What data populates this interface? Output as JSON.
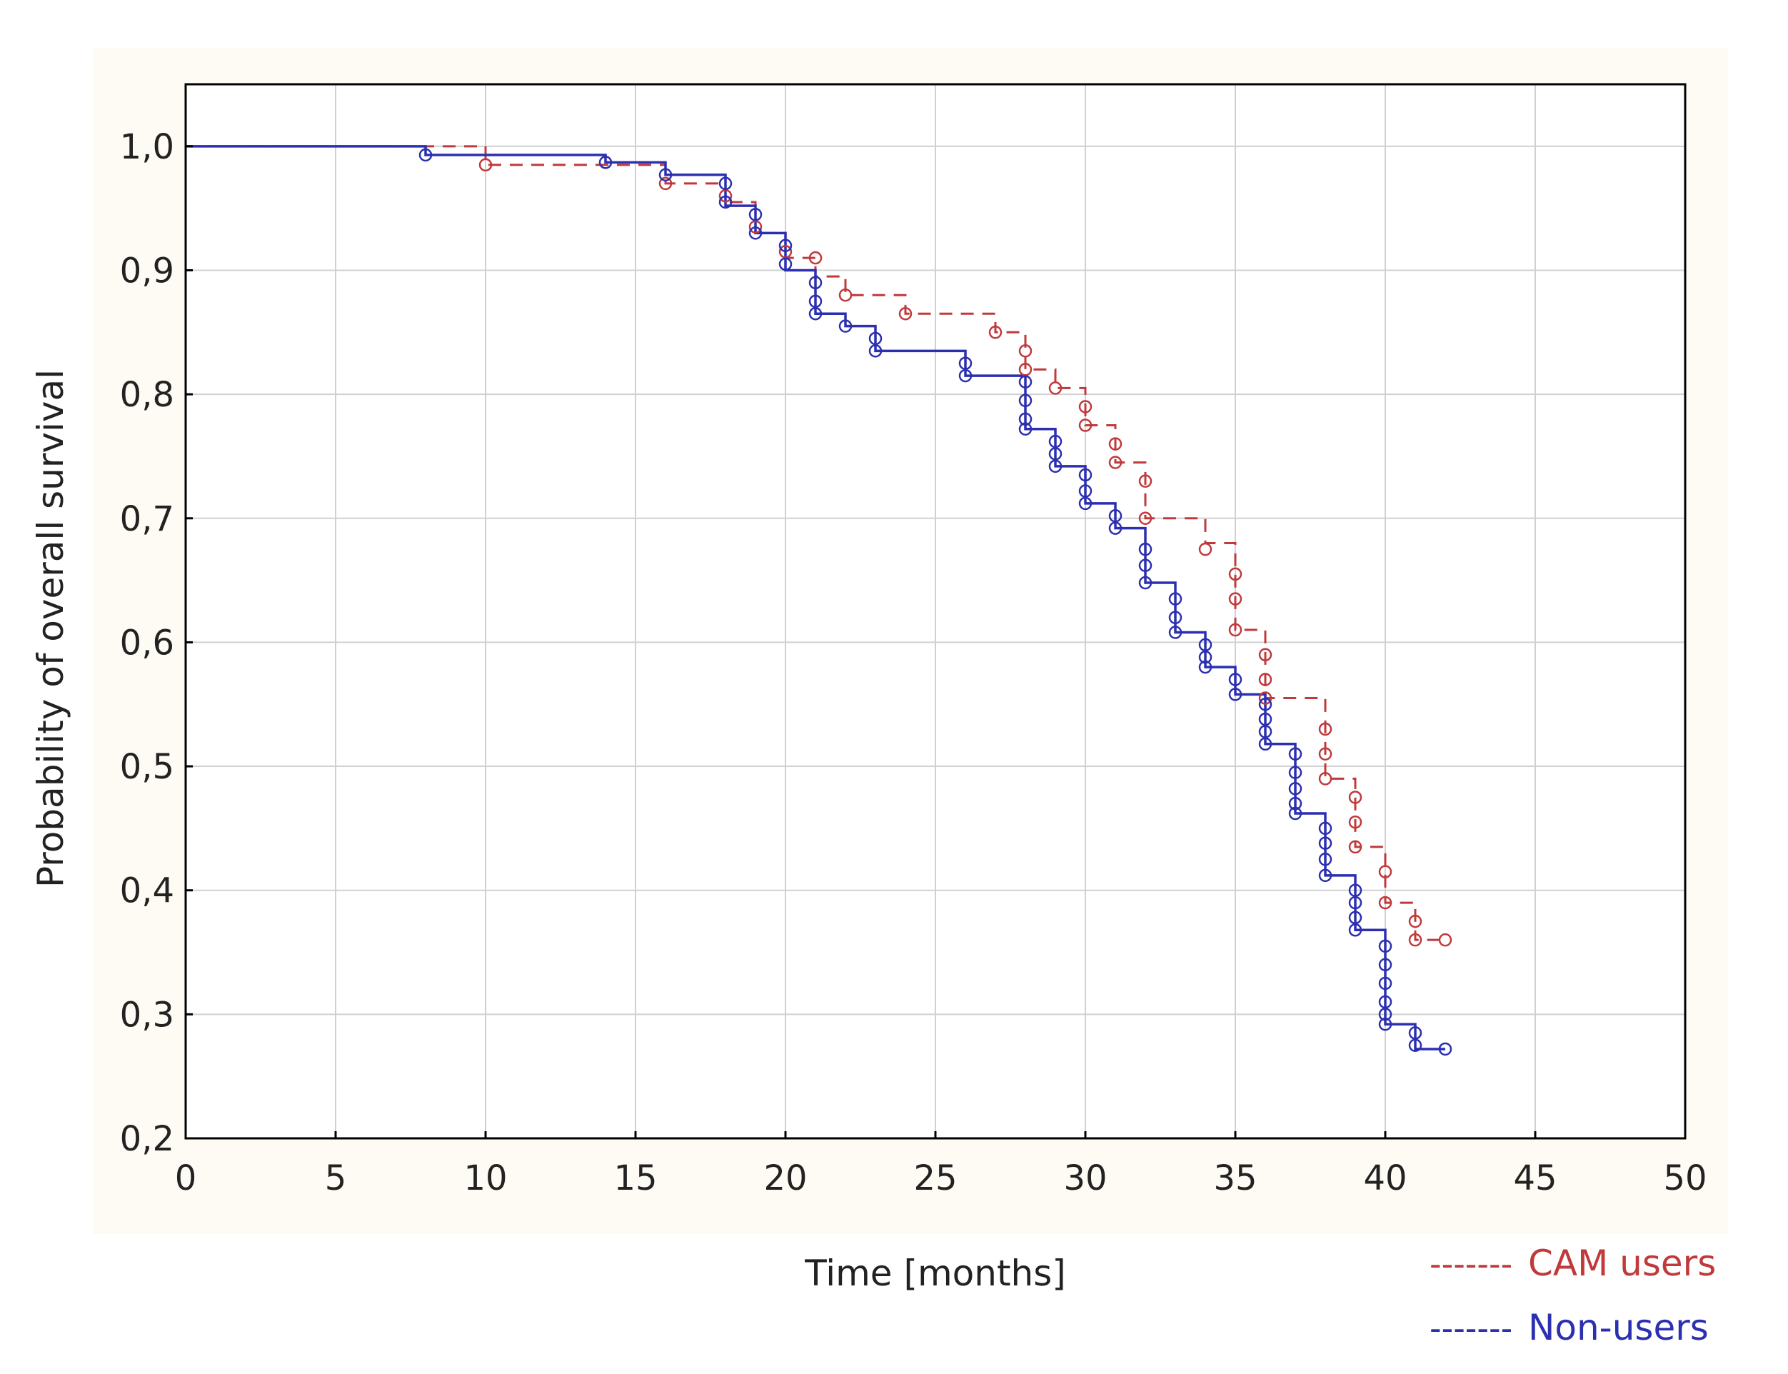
{
  "chart_data": {
    "type": "line",
    "title": "",
    "xlabel": "Time [months]",
    "ylabel": "Probability of overall survival",
    "xlim": [
      0,
      50
    ],
    "ylim": [
      0.2,
      1.05
    ],
    "x_ticks": [
      0,
      5,
      10,
      15,
      20,
      25,
      30,
      35,
      40,
      45,
      50
    ],
    "x_tick_labels": [
      "0",
      "5",
      "10",
      "15",
      "20",
      "25",
      "30",
      "35",
      "40",
      "45",
      "50"
    ],
    "y_ticks": [
      0.2,
      0.3,
      0.4,
      0.5,
      0.6,
      0.7,
      0.8,
      0.9,
      1.0
    ],
    "y_tick_labels": [
      "0,2",
      "0,3",
      "0,4",
      "0,5",
      "0,6",
      "0,7",
      "0,8",
      "0,9",
      "1,0"
    ],
    "grid": true,
    "legend_position": "bottom-right",
    "series": [
      {
        "name": "CAM users",
        "color": "#c0393b",
        "line_style": "dashed",
        "marker": "circle",
        "x": [
          0,
          10,
          16,
          18,
          19,
          20,
          21,
          22,
          24,
          27,
          28,
          29,
          30,
          31,
          32,
          34,
          35,
          36,
          38,
          39,
          40,
          41,
          42
        ],
        "y": [
          1.0,
          0.985,
          0.97,
          0.955,
          0.93,
          0.91,
          0.895,
          0.88,
          0.865,
          0.85,
          0.82,
          0.805,
          0.775,
          0.745,
          0.7,
          0.68,
          0.61,
          0.555,
          0.49,
          0.435,
          0.39,
          0.36,
          0.36
        ],
        "censored_x": [
          10,
          16,
          18,
          19,
          20,
          21,
          22,
          24,
          27,
          28,
          28,
          29,
          30,
          30,
          31,
          31,
          32,
          32,
          34,
          35,
          35,
          35,
          36,
          36,
          36,
          38,
          38,
          38,
          39,
          39,
          39,
          40,
          40,
          41,
          41,
          42
        ],
        "censored_y": [
          0.985,
          0.97,
          0.96,
          0.935,
          0.915,
          0.91,
          0.88,
          0.865,
          0.85,
          0.835,
          0.82,
          0.805,
          0.79,
          0.775,
          0.76,
          0.745,
          0.73,
          0.7,
          0.675,
          0.655,
          0.635,
          0.61,
          0.59,
          0.57,
          0.555,
          0.53,
          0.51,
          0.49,
          0.475,
          0.455,
          0.435,
          0.415,
          0.39,
          0.375,
          0.36,
          0.36
        ]
      },
      {
        "name": "Non-users",
        "color": "#2b2fb0",
        "line_style": "solid",
        "marker": "circle",
        "x": [
          0,
          8,
          14,
          16,
          18,
          19,
          20,
          21,
          22,
          23,
          26,
          28,
          29,
          30,
          31,
          32,
          33,
          34,
          35,
          36,
          37,
          38,
          39,
          40,
          41,
          42
        ],
        "y": [
          1.0,
          0.993,
          0.987,
          0.977,
          0.952,
          0.93,
          0.9,
          0.865,
          0.855,
          0.835,
          0.815,
          0.772,
          0.742,
          0.712,
          0.692,
          0.648,
          0.608,
          0.58,
          0.558,
          0.518,
          0.462,
          0.412,
          0.368,
          0.292,
          0.272,
          0.272
        ],
        "censored_x": [
          8,
          14,
          16,
          18,
          18,
          19,
          19,
          20,
          20,
          21,
          21,
          21,
          22,
          23,
          23,
          26,
          26,
          28,
          28,
          28,
          28,
          29,
          29,
          29,
          30,
          30,
          30,
          31,
          31,
          32,
          32,
          32,
          33,
          33,
          33,
          34,
          34,
          34,
          35,
          35,
          36,
          36,
          36,
          36,
          37,
          37,
          37,
          37,
          37,
          38,
          38,
          38,
          38,
          39,
          39,
          39,
          39,
          40,
          40,
          40,
          40,
          40,
          40,
          41,
          41,
          42
        ],
        "censored_y": [
          0.993,
          0.987,
          0.977,
          0.97,
          0.955,
          0.945,
          0.93,
          0.92,
          0.905,
          0.89,
          0.875,
          0.865,
          0.855,
          0.845,
          0.835,
          0.825,
          0.815,
          0.81,
          0.795,
          0.78,
          0.772,
          0.762,
          0.752,
          0.742,
          0.735,
          0.722,
          0.712,
          0.702,
          0.692,
          0.675,
          0.662,
          0.648,
          0.635,
          0.62,
          0.608,
          0.598,
          0.588,
          0.58,
          0.57,
          0.558,
          0.55,
          0.538,
          0.528,
          0.518,
          0.51,
          0.495,
          0.482,
          0.47,
          0.462,
          0.45,
          0.438,
          0.425,
          0.412,
          0.4,
          0.39,
          0.378,
          0.368,
          0.355,
          0.34,
          0.325,
          0.31,
          0.3,
          0.292,
          0.285,
          0.275,
          0.272
        ]
      }
    ],
    "legend": [
      {
        "sample": "-------",
        "label": "CAM users"
      },
      {
        "sample": "-------",
        "label": "Non-users"
      }
    ]
  },
  "colors": {
    "panel_background": "#fdfbf3",
    "plot_background": "#ffffff",
    "grid": "#d0d0d0",
    "axis": "#000000",
    "text": "#222222"
  }
}
